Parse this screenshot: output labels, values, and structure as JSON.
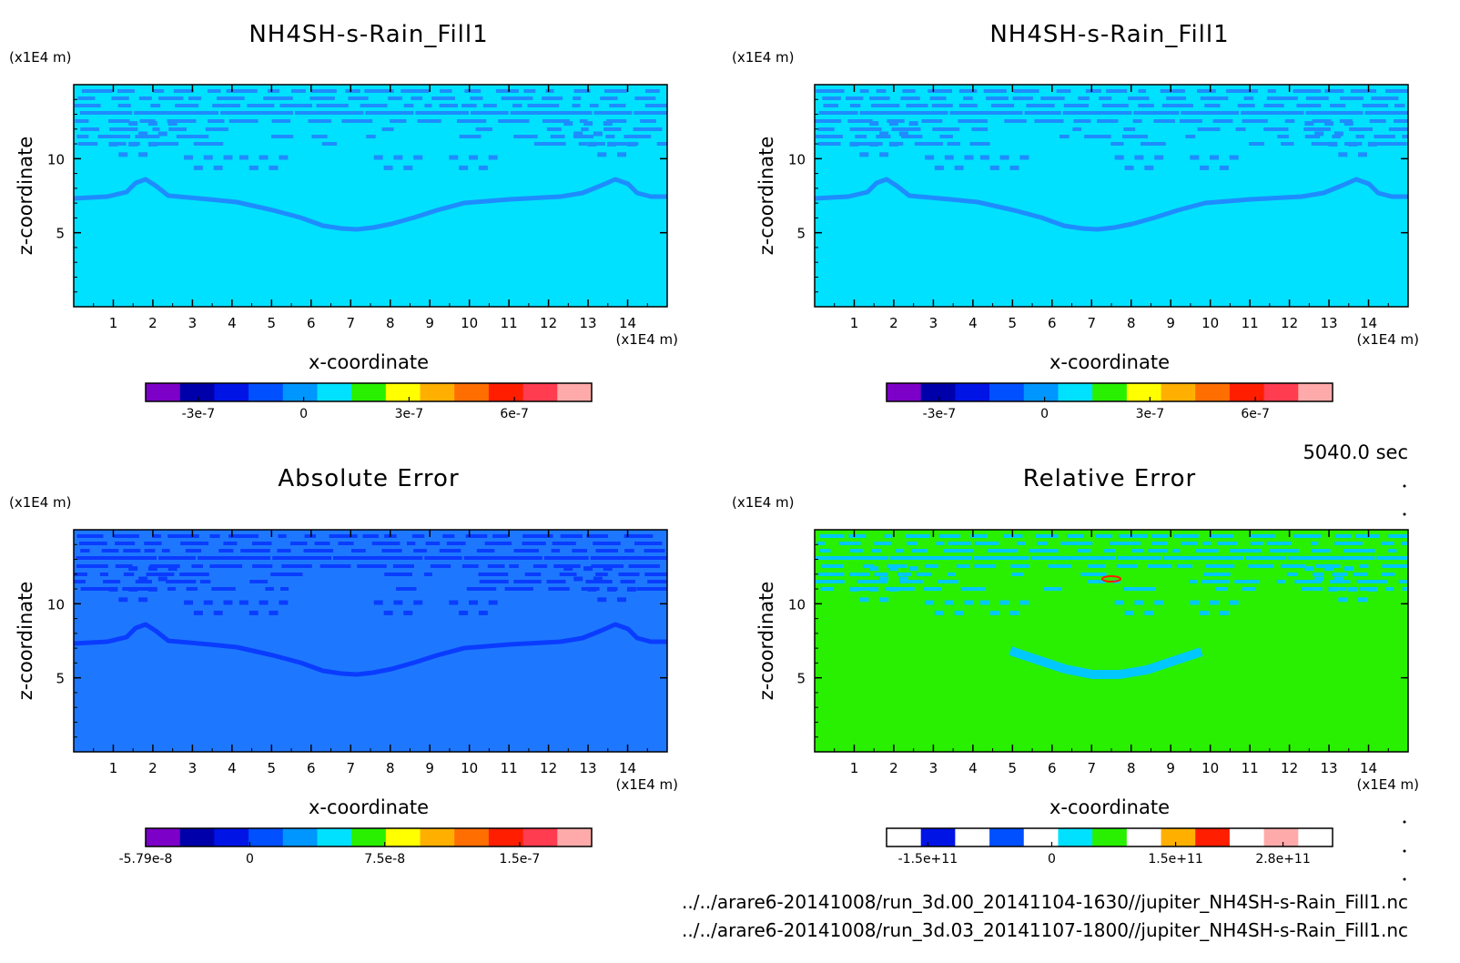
{
  "colors": {
    "panel1_fill": "#00e1ff",
    "panel1_bands": "#1e8cff",
    "panel3_fill": "#1e78ff",
    "panel3_bands": "#0a3cff",
    "panel4_fill": "#28f000",
    "panel4_bands": "#00c8ff"
  },
  "info": {
    "time_label": "5040.0 sec",
    "file_path_1": "../../arare6-20141008/run_3d.00_20141104-1630//jupiter_NH4SH-s-Rain_Fill1.nc",
    "file_path_2": "../../arare6-20141008/run_3d.03_20141107-1800//jupiter_NH4SH-s-Rain_Fill1.nc"
  },
  "chart_data": [
    {
      "type": "heatmap",
      "title": "NH4SH-s-Rain_Fill1",
      "xlabel": "x-coordinate",
      "ylabel": "z-coordinate",
      "x_unit": "(x1E4 m)",
      "y_unit": "(x1E4 m)",
      "xlim": [
        0,
        15
      ],
      "ylim": [
        0,
        15
      ],
      "x_ticks": [
        "1",
        "2",
        "3",
        "4",
        "5",
        "6",
        "7",
        "8",
        "9",
        "10",
        "11",
        "12",
        "13",
        "14"
      ],
      "y_ticks": [
        "5",
        "10"
      ],
      "colorbar": {
        "colors": [
          "#7d00c8",
          "#0000aa",
          "#0014e6",
          "#0050ff",
          "#0096ff",
          "#00e1ff",
          "#28f000",
          "#ffff00",
          "#ffaf00",
          "#ff6e00",
          "#ff1e00",
          "#ff3c50",
          "#ffaaaa"
        ],
        "tick_labels": [
          "-3e-7",
          "0",
          "3e-7",
          "6e-7"
        ],
        "range": [
          -4.5e-07,
          8.2e-07
        ]
      }
    },
    {
      "type": "heatmap",
      "title": "NH4SH-s-Rain_Fill1",
      "xlabel": "x-coordinate",
      "ylabel": "z-coordinate",
      "x_unit": "(x1E4 m)",
      "y_unit": "(x1E4 m)",
      "xlim": [
        0,
        15
      ],
      "ylim": [
        0,
        15
      ],
      "x_ticks": [
        "1",
        "2",
        "3",
        "4",
        "5",
        "6",
        "7",
        "8",
        "9",
        "10",
        "11",
        "12",
        "13",
        "14"
      ],
      "y_ticks": [
        "5",
        "10"
      ],
      "colorbar": {
        "colors": [
          "#7d00c8",
          "#0000aa",
          "#0014e6",
          "#0050ff",
          "#0096ff",
          "#00e1ff",
          "#28f000",
          "#ffff00",
          "#ffaf00",
          "#ff6e00",
          "#ff1e00",
          "#ff3c50",
          "#ffaaaa"
        ],
        "tick_labels": [
          "-3e-7",
          "0",
          "3e-7",
          "6e-7"
        ],
        "range": [
          -4.5e-07,
          8.2e-07
        ]
      }
    },
    {
      "type": "heatmap",
      "title": "Absolute Error",
      "xlabel": "x-coordinate",
      "ylabel": "z-coordinate",
      "x_unit": "(x1E4 m)",
      "y_unit": "(x1E4 m)",
      "xlim": [
        0,
        15
      ],
      "ylim": [
        0,
        15
      ],
      "x_ticks": [
        "1",
        "2",
        "3",
        "4",
        "5",
        "6",
        "7",
        "8",
        "9",
        "10",
        "11",
        "12",
        "13",
        "14"
      ],
      "y_ticks": [
        "5",
        "10"
      ],
      "colorbar": {
        "colors": [
          "#7d00c8",
          "#0000aa",
          "#0014e6",
          "#0050ff",
          "#0096ff",
          "#00e1ff",
          "#28f000",
          "#ffff00",
          "#ffaf00",
          "#ff6e00",
          "#ff1e00",
          "#ff3c50",
          "#ffaaaa"
        ],
        "tick_labels": [
          "-5.79e-8",
          "0",
          "7.5e-8",
          "1.5e-7"
        ],
        "range": [
          -5.79e-08,
          1.9e-07
        ]
      }
    },
    {
      "type": "heatmap",
      "title": "Relative Error",
      "xlabel": "x-coordinate",
      "ylabel": "z-coordinate",
      "x_unit": "(x1E4 m)",
      "y_unit": "(x1E4 m)",
      "xlim": [
        0,
        15
      ],
      "ylim": [
        0,
        15
      ],
      "x_ticks": [
        "1",
        "2",
        "3",
        "4",
        "5",
        "6",
        "7",
        "8",
        "9",
        "10",
        "11",
        "12",
        "13",
        "14"
      ],
      "y_ticks": [
        "5",
        "10"
      ],
      "colorbar": {
        "colors": [
          "#ffffff",
          "#0014e6",
          "#ffffff",
          "#0050ff",
          "#ffffff",
          "#00e1ff",
          "#28f000",
          "#ffffff",
          "#ffaf00",
          "#ff1e00",
          "#ffffff",
          "#ffaaaa",
          "#ffffff"
        ],
        "tick_labels": [
          "-1.5e+11",
          "0",
          "1.5e+11",
          "2.8e+11"
        ],
        "range": [
          -200000000000.0,
          340000000000.0
        ]
      }
    }
  ]
}
